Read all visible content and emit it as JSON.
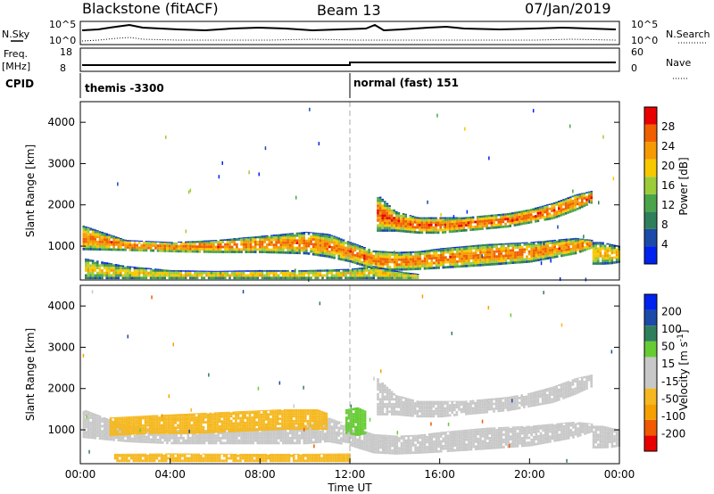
{
  "header": {
    "title": "Blackstone (fitACF)",
    "beam": "Beam 13",
    "date": "07/Jan/2019"
  },
  "left_labels": {
    "nsky": "N.Sky",
    "freq": "Freq.",
    "freq_unit": "[MHz]",
    "cpid": "CPID"
  },
  "right_labels": {
    "nsearch": "N.Search",
    "nave": "Nave"
  },
  "noise_panel": {
    "left_ticks": [
      "10^5",
      "10^0"
    ],
    "right_ticks": [
      "10^5",
      "10^0"
    ]
  },
  "freq_panel": {
    "left_ticks": [
      "18",
      "8"
    ],
    "right_ticks": [
      "60",
      "0"
    ]
  },
  "cpid_panel": {
    "segments": [
      {
        "label": "themis -3300",
        "start_hour": 0
      },
      {
        "label": "normal (fast) 151",
        "start_hour": 12
      }
    ]
  },
  "colors": {
    "power": [
      "#0022ee",
      "#1c4aa8",
      "#2f7f5c",
      "#4aa54a",
      "#9ccc3a",
      "#f5c800",
      "#f59a00",
      "#f06000",
      "#e80000"
    ],
    "velocity": [
      "#e80000",
      "#f05a00",
      "#f5a000",
      "#f5b820",
      "#c8c8c8",
      "#c8c8c8",
      "#66cc33",
      "#2f7f5c",
      "#1c4aa8",
      "#0022ee"
    ],
    "velocity_ground": "#c8c8c8",
    "dashed_line": "#aaaaaa"
  },
  "chart_data": [
    {
      "type": "heatmap",
      "title": "",
      "quantity": "Power",
      "ylabel": "Slant Range [km]",
      "xlabel": "",
      "ylim": [
        180,
        4500
      ],
      "yticks": [
        1000,
        2000,
        3000,
        4000
      ],
      "xlim": [
        0,
        24
      ],
      "colorbar": {
        "label": "Power [dB]",
        "ticks": [
          4,
          8,
          12,
          16,
          20,
          24,
          28
        ],
        "range": [
          0,
          32
        ]
      },
      "bands": [
        {
          "name": "band-main",
          "x": [
            0.1,
            2,
            4,
            6,
            8,
            10,
            11,
            12,
            13,
            14,
            15,
            16,
            18,
            20,
            22,
            22.8
          ],
          "low": [
            900,
            880,
            850,
            830,
            830,
            800,
            720,
            600,
            430,
            400,
            420,
            450,
            520,
            600,
            800,
            950
          ],
          "high": [
            1500,
            1150,
            1100,
            1150,
            1250,
            1350,
            1300,
            1100,
            900,
            860,
            880,
            950,
            1050,
            1100,
            1200,
            1150
          ],
          "core": 26
        },
        {
          "name": "band-upper",
          "x": [
            13.2,
            14,
            15,
            16,
            17,
            18,
            19,
            20,
            21,
            22,
            22.8
          ],
          "low": [
            1350,
            1350,
            1300,
            1300,
            1350,
            1400,
            1450,
            1550,
            1650,
            1850,
            2050
          ],
          "high": [
            2250,
            1850,
            1700,
            1700,
            1700,
            1750,
            1800,
            1900,
            2050,
            2250,
            2350
          ],
          "core": 27
        },
        {
          "name": "band-ground",
          "x": [
            0.2,
            2,
            4,
            6,
            8,
            10,
            12,
            13,
            14,
            15
          ],
          "low": [
            200,
            200,
            200,
            200,
            200,
            200,
            200,
            200,
            200,
            200
          ],
          "high": [
            700,
            520,
            420,
            400,
            420,
            420,
            450,
            520,
            400,
            330
          ],
          "core": 20
        },
        {
          "name": "band-late",
          "x": [
            22.8,
            23.2,
            23.6,
            24
          ],
          "low": [
            550,
            550,
            560,
            600
          ],
          "high": [
            1100,
            1100,
            1050,
            1000
          ],
          "core": 22
        }
      ]
    },
    {
      "type": "heatmap",
      "title": "",
      "quantity": "Velocity",
      "ylabel": "Slant Range [km]",
      "xlabel": "Time UT",
      "ylim": [
        180,
        4500
      ],
      "yticks": [
        1000,
        2000,
        3000,
        4000
      ],
      "xlim": [
        0,
        24
      ],
      "xticks": [
        "00:00",
        "04:00",
        "08:00",
        "12:00",
        "16:00",
        "20:00",
        "00:00"
      ],
      "colorbar": {
        "label": "Velocity [m s^-1]",
        "ticks": [
          -200,
          -100,
          -50,
          -15,
          15,
          50,
          100,
          200
        ],
        "range": [
          -250,
          250
        ]
      },
      "bands": [
        {
          "name": "vband-gray",
          "x": [
            0.1,
            2,
            4,
            6,
            8,
            10,
            11,
            12,
            13,
            14,
            15,
            16,
            18,
            20,
            22,
            22.8
          ],
          "low": [
            800,
            700,
            650,
            650,
            650,
            650,
            700,
            600,
            430,
            400,
            420,
            450,
            520,
            600,
            800,
            950
          ],
          "high": [
            1500,
            1100,
            1000,
            1000,
            1050,
            1100,
            1300,
            1100,
            900,
            860,
            880,
            950,
            1050,
            1100,
            1200,
            1150
          ],
          "value": 0
        },
        {
          "name": "vband-orange",
          "x": [
            1.3,
            3,
            5,
            7,
            9,
            10.5,
            11
          ],
          "low": [
            850,
            900,
            900,
            950,
            1000,
            1000,
            1000
          ],
          "high": [
            1300,
            1350,
            1400,
            1450,
            1500,
            1500,
            1400
          ],
          "value": -40
        },
        {
          "name": "vband-orange-low",
          "x": [
            1.5,
            4,
            7,
            10,
            12
          ],
          "low": [
            220,
            220,
            220,
            220,
            220
          ],
          "high": [
            420,
            430,
            420,
            420,
            430
          ],
          "value": -35
        },
        {
          "name": "vband-green",
          "x": [
            11.8,
            12.3,
            12.7
          ],
          "low": [
            900,
            850,
            900
          ],
          "high": [
            1500,
            1550,
            1450
          ],
          "value": 30
        },
        {
          "name": "vband-upper",
          "x": [
            13.2,
            14,
            15,
            16,
            17,
            18,
            19,
            20,
            21,
            22,
            22.8
          ],
          "low": [
            1350,
            1350,
            1300,
            1300,
            1350,
            1400,
            1450,
            1550,
            1650,
            1850,
            2050
          ],
          "high": [
            2250,
            1850,
            1700,
            1700,
            1700,
            1750,
            1800,
            1900,
            2050,
            2250,
            2350
          ],
          "value": 0
        },
        {
          "name": "vband-late",
          "x": [
            22.8,
            23.2,
            23.6,
            24
          ],
          "low": [
            550,
            550,
            560,
            600
          ],
          "high": [
            1100,
            1100,
            1050,
            1000
          ],
          "value": 0
        }
      ]
    }
  ]
}
